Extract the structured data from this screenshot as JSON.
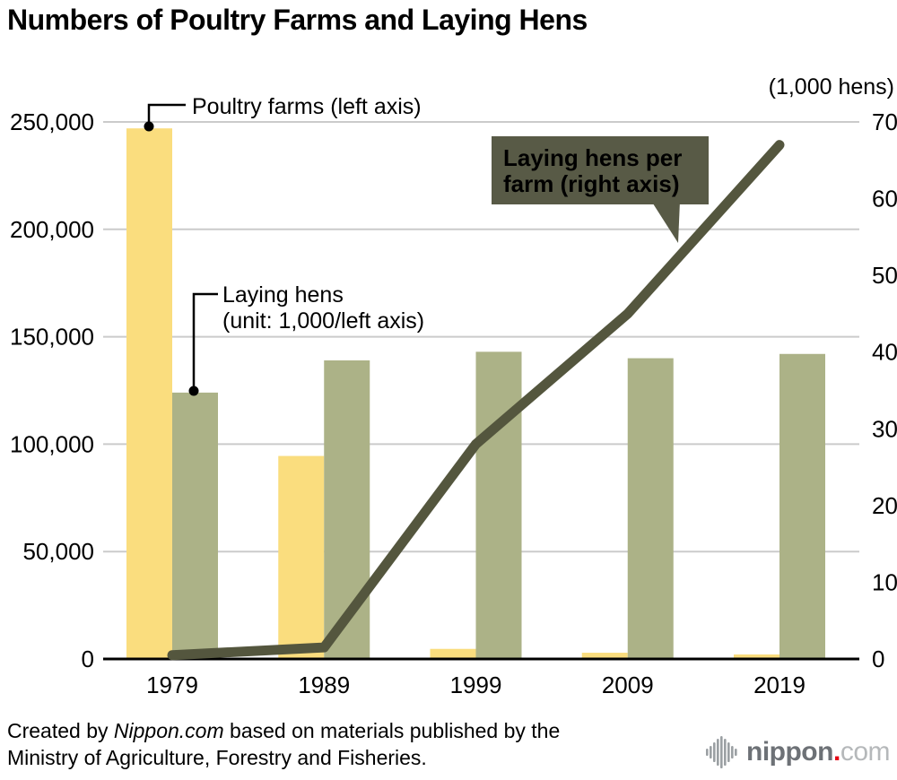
{
  "header": {
    "title": "Numbers of Poultry Farms and Laying Hens"
  },
  "chart_data": {
    "type": "bar+line",
    "title": "Numbers of Poultry Farms and Laying Hens",
    "categories": [
      "1979",
      "1989",
      "1999",
      "2009",
      "2019"
    ],
    "series": [
      {
        "name": "Poultry farms (left axis)",
        "type": "bar",
        "axis": "left",
        "color": "#FADD7E",
        "values": [
          247000,
          94500,
          4700,
          2900,
          2100
        ]
      },
      {
        "name": "Laying hens (unit: 1,000/left axis)",
        "type": "bar",
        "axis": "left",
        "color": "#ACB287",
        "values": [
          124000,
          139000,
          143000,
          140000,
          142000
        ]
      },
      {
        "name": "Laying hens per farm (right axis)",
        "type": "line",
        "axis": "right",
        "color": "#54563E",
        "values": [
          0.5,
          1.5,
          28,
          45,
          67
        ]
      }
    ],
    "left_axis": {
      "ticks": [
        "0",
        "50,000",
        "100,000",
        "150,000",
        "200,000",
        "250,000"
      ],
      "tick_values": [
        0,
        50000,
        100000,
        150000,
        200000,
        250000
      ],
      "max": 250000
    },
    "right_axis": {
      "unit_label": "(1,000 hens)",
      "ticks": [
        "0",
        "10",
        "20",
        "30",
        "40",
        "50",
        "60",
        "70"
      ],
      "tick_values": [
        0,
        10,
        20,
        30,
        40,
        50,
        60,
        70
      ],
      "max": 70
    },
    "grid": true,
    "legend_position": "annotations-on-chart"
  },
  "annotations": {
    "poultry_farms_label": "Poultry farms (left axis)",
    "laying_hens_label_line1": "Laying hens",
    "laying_hens_label_line2": "(unit: 1,000/left axis)",
    "callout_line1": "Laying hens per",
    "callout_line2": "farm (right axis)"
  },
  "footer": {
    "credit_prefix": "Created by ",
    "credit_source": "Nippon.com",
    "credit_suffix": " based on materials published by the Ministry of Agriculture, Forestry and Fisheries.",
    "logo": {
      "name": "nippon",
      "dot": ".",
      "tld": "com"
    }
  },
  "colors": {
    "bar_yellow": "#FADD7E",
    "bar_green": "#ACB287",
    "line_olive": "#54563E",
    "callout_bg": "#585A46",
    "callout_text": "#FFFFFF",
    "grid": "#CBCBCB",
    "axis": "#000000",
    "annotation_connector": "#000000",
    "logo_gray": "#6D7176",
    "logo_light": "#B5B8BA",
    "logo_red": "#E60012",
    "logo_mark": "#9BA0A3"
  }
}
